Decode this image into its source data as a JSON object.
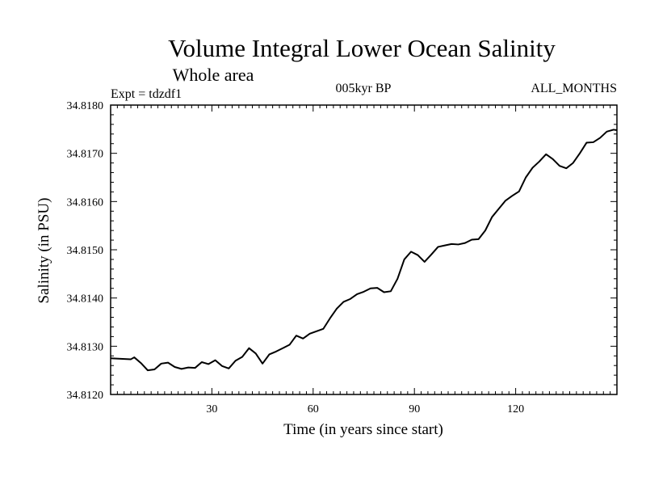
{
  "chart_data": {
    "type": "line",
    "title": "Volume Integral Lower Ocean Salinity",
    "subtitle": "Whole area",
    "experiment": "Expt = tdzdf1",
    "period": "005kyr BP",
    "months": "ALL_MONTHS",
    "xlabel": "Time (in years since start)",
    "ylabel": "Salinity (in PSU)",
    "xlim": [
      0,
      150
    ],
    "ylim": [
      34.812,
      34.818
    ],
    "xticks": [
      30,
      60,
      90,
      120
    ],
    "xtick_labels": [
      "30",
      "60",
      "90",
      "120"
    ],
    "yticks": [
      34.812,
      34.813,
      34.814,
      34.815,
      34.816,
      34.817,
      34.818
    ],
    "ytick_labels": [
      "34.8120",
      "34.8130",
      "34.8140",
      "34.8150",
      "34.8160",
      "34.8170",
      "34.8180"
    ],
    "grid": false,
    "series": [
      {
        "name": "Salinity",
        "x": [
          0,
          3,
          6,
          7,
          9,
          11,
          13,
          15,
          17,
          19,
          21,
          23,
          25,
          27,
          29,
          31,
          33,
          35,
          37,
          39,
          41,
          43,
          45,
          47,
          49,
          51,
          53,
          55,
          57,
          59,
          61,
          63,
          65,
          67,
          69,
          71,
          73,
          75,
          77,
          79,
          81,
          83,
          85,
          87,
          89,
          91,
          93,
          95,
          97,
          99,
          101,
          103,
          105,
          107,
          109,
          111,
          113,
          115,
          117,
          119,
          121,
          123,
          125,
          127,
          129,
          131,
          133,
          135,
          137,
          139,
          141,
          143,
          145,
          147,
          149,
          150
        ],
        "values": [
          34.81275,
          34.81274,
          34.81273,
          34.81277,
          34.81265,
          34.8125,
          34.81252,
          34.81264,
          34.81266,
          34.81257,
          34.81253,
          34.81256,
          34.81255,
          34.81267,
          34.81263,
          34.81271,
          34.81259,
          34.81254,
          34.8127,
          34.81278,
          34.81296,
          34.81285,
          34.81264,
          34.81283,
          34.81289,
          34.81296,
          34.81303,
          34.81322,
          34.81316,
          34.81326,
          34.81331,
          34.81336,
          34.81358,
          34.81378,
          34.81392,
          34.81398,
          34.81408,
          34.81413,
          34.8142,
          34.81421,
          34.81412,
          34.81414,
          34.8144,
          34.8148,
          34.81496,
          34.81489,
          34.81475,
          34.8149,
          34.81506,
          34.81509,
          34.81512,
          34.81511,
          34.81514,
          34.81521,
          34.81522,
          34.8154,
          34.81568,
          34.81585,
          34.81602,
          34.81612,
          34.81621,
          34.8165,
          34.8167,
          34.81683,
          34.81698,
          34.81688,
          34.81674,
          34.81669,
          34.8168,
          34.817,
          34.81722,
          34.81723,
          34.81732,
          34.81745,
          34.81749,
          34.81748
        ]
      }
    ]
  }
}
